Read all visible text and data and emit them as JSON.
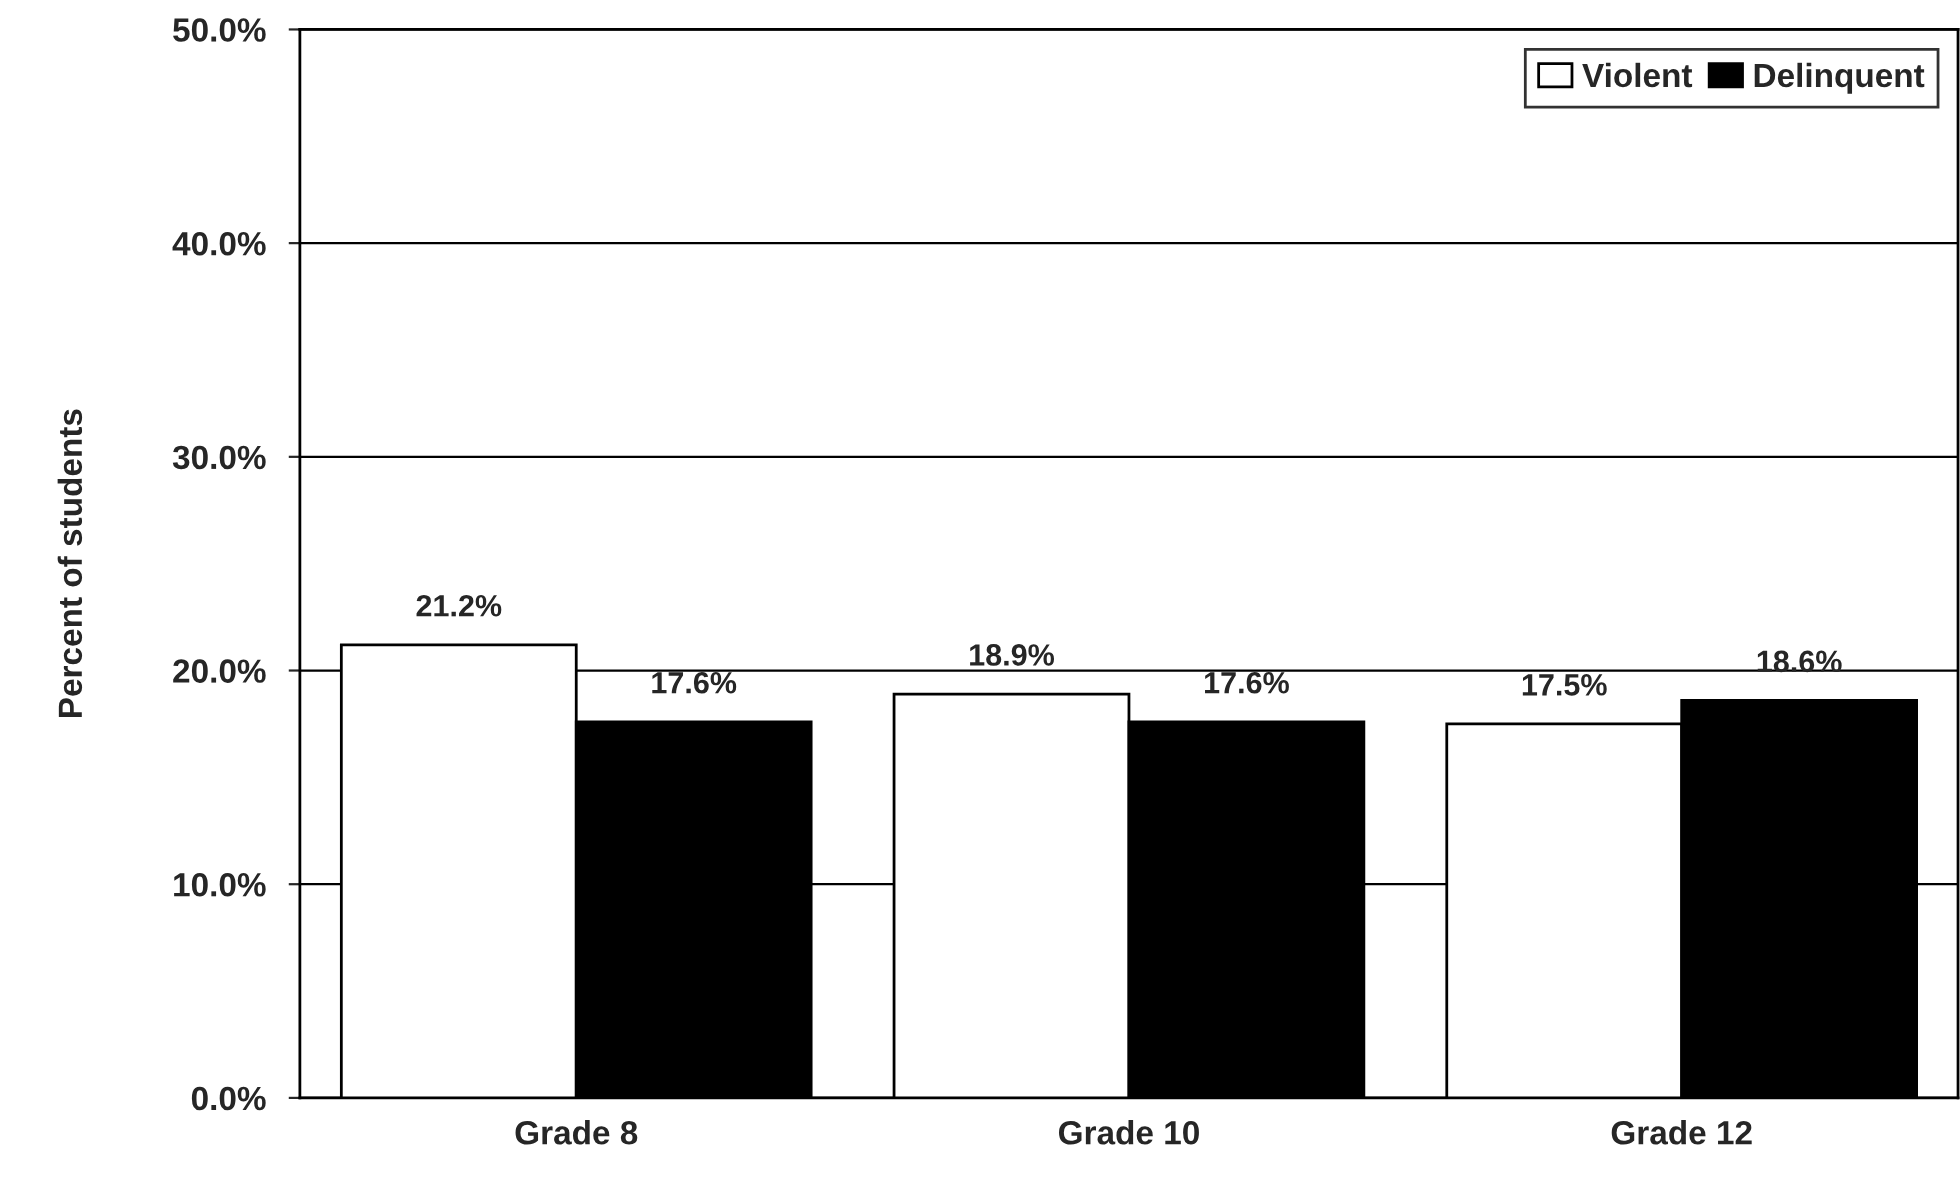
{
  "chart_data": {
    "type": "bar",
    "ylabel": "Percent of students",
    "categories": [
      "Grade 8",
      "Grade 10",
      "Grade 12"
    ],
    "series": [
      {
        "name": "Violent",
        "color": "#ffffff",
        "values": [
          21.2,
          18.9,
          17.5
        ],
        "value_labels": [
          "21.2%",
          "18.9%",
          "17.5%"
        ]
      },
      {
        "name": "Delinquent",
        "color": "#000000",
        "values": [
          17.6,
          17.6,
          18.6
        ],
        "value_labels": [
          "17.6%",
          "17.6%",
          "18.6%"
        ]
      }
    ],
    "ylim": [
      0,
      50
    ],
    "yticks": [
      {
        "value": 0,
        "label": "0.0%"
      },
      {
        "value": 10,
        "label": "10.0%"
      },
      {
        "value": 20,
        "label": "20.0%"
      },
      {
        "value": 30,
        "label": "30.0%"
      },
      {
        "value": 40,
        "label": "40.0%"
      },
      {
        "value": 50,
        "label": "50.0%"
      }
    ],
    "grid": "y",
    "legend": "top right"
  }
}
